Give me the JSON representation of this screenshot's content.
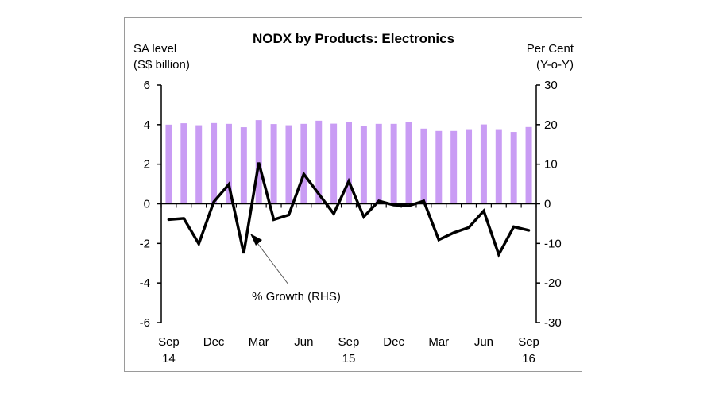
{
  "chart_data": {
    "type": "bar",
    "title": "NODX by Products: Electronics",
    "ylabel_left": [
      "SA level",
      "(S$ billion)"
    ],
    "ylabel_right": [
      "Per Cent",
      "(Y-o-Y)"
    ],
    "xlabel": "",
    "ylim_left": [
      -6,
      6
    ],
    "ylim_right": [
      -30,
      30
    ],
    "yticks_left": [
      6,
      4,
      2,
      0,
      -2,
      -4,
      -6
    ],
    "yticks_right": [
      30,
      20,
      10,
      0,
      -10,
      -20,
      -30
    ],
    "grid": false,
    "colors": {
      "bars": "#c99cf4",
      "line": "#000000",
      "axis": "#000000"
    },
    "categories": [
      "Sep 14",
      "Oct 14",
      "Nov 14",
      "Dec 14",
      "Jan 15",
      "Feb 15",
      "Mar 15",
      "Apr 15",
      "May 15",
      "Jun 15",
      "Jul 15",
      "Aug 15",
      "Sep 15",
      "Oct 15",
      "Nov 15",
      "Dec 15",
      "Jan 16",
      "Feb 16",
      "Mar 16",
      "Apr 16",
      "May 16",
      "Jun 16",
      "Jul 16",
      "Aug 16",
      "Sep 16"
    ],
    "xtick_labels": [
      {
        "index": 0,
        "line1": "Sep",
        "line2": "14"
      },
      {
        "index": 3,
        "line1": "Dec",
        "line2": ""
      },
      {
        "index": 6,
        "line1": "Mar",
        "line2": ""
      },
      {
        "index": 9,
        "line1": "Jun",
        "line2": ""
      },
      {
        "index": 12,
        "line1": "Sep",
        "line2": "15"
      },
      {
        "index": 15,
        "line1": "Dec",
        "line2": ""
      },
      {
        "index": 18,
        "line1": "Mar",
        "line2": ""
      },
      {
        "index": 21,
        "line1": "Jun",
        "line2": ""
      },
      {
        "index": 24,
        "line1": "Sep",
        "line2": "16"
      }
    ],
    "series": [
      {
        "name": "SA level (LHS)",
        "type": "bar",
        "axis": "left",
        "values": [
          4.0,
          4.07,
          3.97,
          4.08,
          4.04,
          3.87,
          4.23,
          4.03,
          3.97,
          4.04,
          4.2,
          4.05,
          4.13,
          3.93,
          4.04,
          4.04,
          4.13,
          3.8,
          3.68,
          3.68,
          3.77,
          4.01,
          3.77,
          3.63,
          3.88
        ]
      },
      {
        "name": "% Growth (RHS)",
        "type": "line",
        "axis": "right",
        "values": [
          -4.0,
          -3.7,
          -10.1,
          0.5,
          4.9,
          -12.5,
          10.4,
          -4.0,
          -2.8,
          7.5,
          2.5,
          -2.5,
          5.7,
          -3.3,
          0.7,
          -0.3,
          -0.5,
          0.7,
          -9.1,
          -7.3,
          -6.0,
          -1.8,
          -12.8,
          -5.8,
          -6.7
        ]
      }
    ],
    "annotations": [
      {
        "text": "% Growth (RHS)",
        "points_to_series": "% Growth (RHS)",
        "points_to_index": 5
      }
    ]
  }
}
